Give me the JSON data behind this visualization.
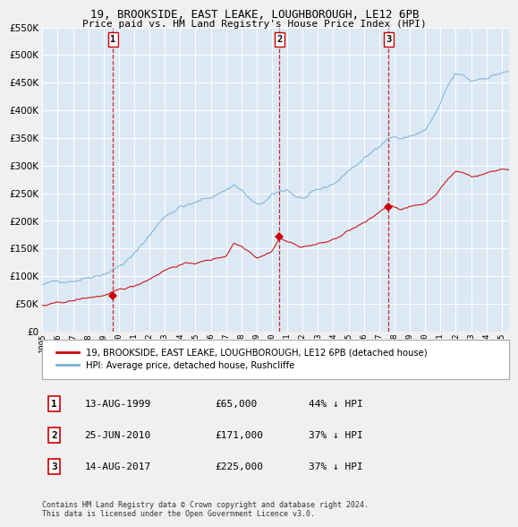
{
  "title": "19, BROOKSIDE, EAST LEAKE, LOUGHBOROUGH, LE12 6PB",
  "subtitle": "Price paid vs. HM Land Registry's House Price Index (HPI)",
  "bg_color": "#dce9f5",
  "grid_color": "#ffffff",
  "hpi_color": "#7bafd4",
  "price_color": "#cc0000",
  "sale_dates_num": [
    1999.617,
    2010.486,
    2017.617
  ],
  "sale_prices": [
    65000,
    171000,
    225000
  ],
  "sale_labels": [
    "1",
    "2",
    "3"
  ],
  "sale_info": [
    {
      "label": "1",
      "date": "13-AUG-1999",
      "price": "£65,000",
      "pct": "44% ↓ HPI"
    },
    {
      "label": "2",
      "date": "25-JUN-2010",
      "price": "£171,000",
      "pct": "37% ↓ HPI"
    },
    {
      "label": "3",
      "date": "14-AUG-2017",
      "price": "£225,000",
      "pct": "37% ↓ HPI"
    }
  ],
  "legend_property": "19, BROOKSIDE, EAST LEAKE, LOUGHBOROUGH, LE12 6PB (detached house)",
  "legend_hpi": "HPI: Average price, detached house, Rushcliffe",
  "footer1": "Contains HM Land Registry data © Crown copyright and database right 2024.",
  "footer2": "This data is licensed under the Open Government Licence v3.0.",
  "ylim": [
    0,
    550000
  ],
  "xlim_start": 1995.0,
  "xlim_end": 2025.5,
  "hpi_keypoints": [
    [
      1995.0,
      85000
    ],
    [
      1996.0,
      88000
    ],
    [
      1997.0,
      95000
    ],
    [
      1998.0,
      105000
    ],
    [
      1999.0,
      115000
    ],
    [
      2000.0,
      130000
    ],
    [
      2001.0,
      150000
    ],
    [
      2002.0,
      185000
    ],
    [
      2003.0,
      220000
    ],
    [
      2004.0,
      240000
    ],
    [
      2005.0,
      245000
    ],
    [
      2006.0,
      255000
    ],
    [
      2007.0,
      270000
    ],
    [
      2007.5,
      280000
    ],
    [
      2008.0,
      270000
    ],
    [
      2008.5,
      255000
    ],
    [
      2009.0,
      240000
    ],
    [
      2009.5,
      245000
    ],
    [
      2010.0,
      255000
    ],
    [
      2010.5,
      260000
    ],
    [
      2011.0,
      265000
    ],
    [
      2011.5,
      255000
    ],
    [
      2012.0,
      250000
    ],
    [
      2012.5,
      255000
    ],
    [
      2013.0,
      258000
    ],
    [
      2013.5,
      262000
    ],
    [
      2014.0,
      270000
    ],
    [
      2014.5,
      280000
    ],
    [
      2015.0,
      295000
    ],
    [
      2015.5,
      305000
    ],
    [
      2016.0,
      315000
    ],
    [
      2016.5,
      325000
    ],
    [
      2017.0,
      340000
    ],
    [
      2017.5,
      355000
    ],
    [
      2018.0,
      360000
    ],
    [
      2018.5,
      355000
    ],
    [
      2019.0,
      360000
    ],
    [
      2019.5,
      365000
    ],
    [
      2020.0,
      370000
    ],
    [
      2020.5,
      390000
    ],
    [
      2021.0,
      415000
    ],
    [
      2021.5,
      445000
    ],
    [
      2022.0,
      465000
    ],
    [
      2022.5,
      460000
    ],
    [
      2023.0,
      450000
    ],
    [
      2023.5,
      455000
    ],
    [
      2024.0,
      460000
    ],
    [
      2024.5,
      465000
    ],
    [
      2025.0,
      470000
    ]
  ],
  "red_keypoints": [
    [
      1995.0,
      47000
    ],
    [
      1996.0,
      49000
    ],
    [
      1997.0,
      53000
    ],
    [
      1998.0,
      58000
    ],
    [
      1999.0,
      62000
    ],
    [
      1999.617,
      65000
    ],
    [
      2000.0,
      68000
    ],
    [
      2001.0,
      75000
    ],
    [
      2002.0,
      90000
    ],
    [
      2003.0,
      108000
    ],
    [
      2004.0,
      118000
    ],
    [
      2005.0,
      120000
    ],
    [
      2006.0,
      125000
    ],
    [
      2007.0,
      133000
    ],
    [
      2007.5,
      157000
    ],
    [
      2008.0,
      152000
    ],
    [
      2008.5,
      145000
    ],
    [
      2009.0,
      135000
    ],
    [
      2009.5,
      140000
    ],
    [
      2010.0,
      148000
    ],
    [
      2010.486,
      171000
    ],
    [
      2010.5,
      171000
    ],
    [
      2011.0,
      165000
    ],
    [
      2011.5,
      158000
    ],
    [
      2012.0,
      155000
    ],
    [
      2012.5,
      158000
    ],
    [
      2013.0,
      160000
    ],
    [
      2013.5,
      162000
    ],
    [
      2014.0,
      167000
    ],
    [
      2014.5,
      173000
    ],
    [
      2015.0,
      182000
    ],
    [
      2015.5,
      188000
    ],
    [
      2016.0,
      194000
    ],
    [
      2016.5,
      200000
    ],
    [
      2017.0,
      210000
    ],
    [
      2017.617,
      225000
    ],
    [
      2018.0,
      222000
    ],
    [
      2018.5,
      219000
    ],
    [
      2019.0,
      222000
    ],
    [
      2019.5,
      225000
    ],
    [
      2020.0,
      228000
    ],
    [
      2020.5,
      240000
    ],
    [
      2021.0,
      256000
    ],
    [
      2021.5,
      274000
    ],
    [
      2022.0,
      287000
    ],
    [
      2022.5,
      284000
    ],
    [
      2023.0,
      278000
    ],
    [
      2023.5,
      280000
    ],
    [
      2024.0,
      284000
    ],
    [
      2024.5,
      288000
    ],
    [
      2025.0,
      292000
    ]
  ]
}
